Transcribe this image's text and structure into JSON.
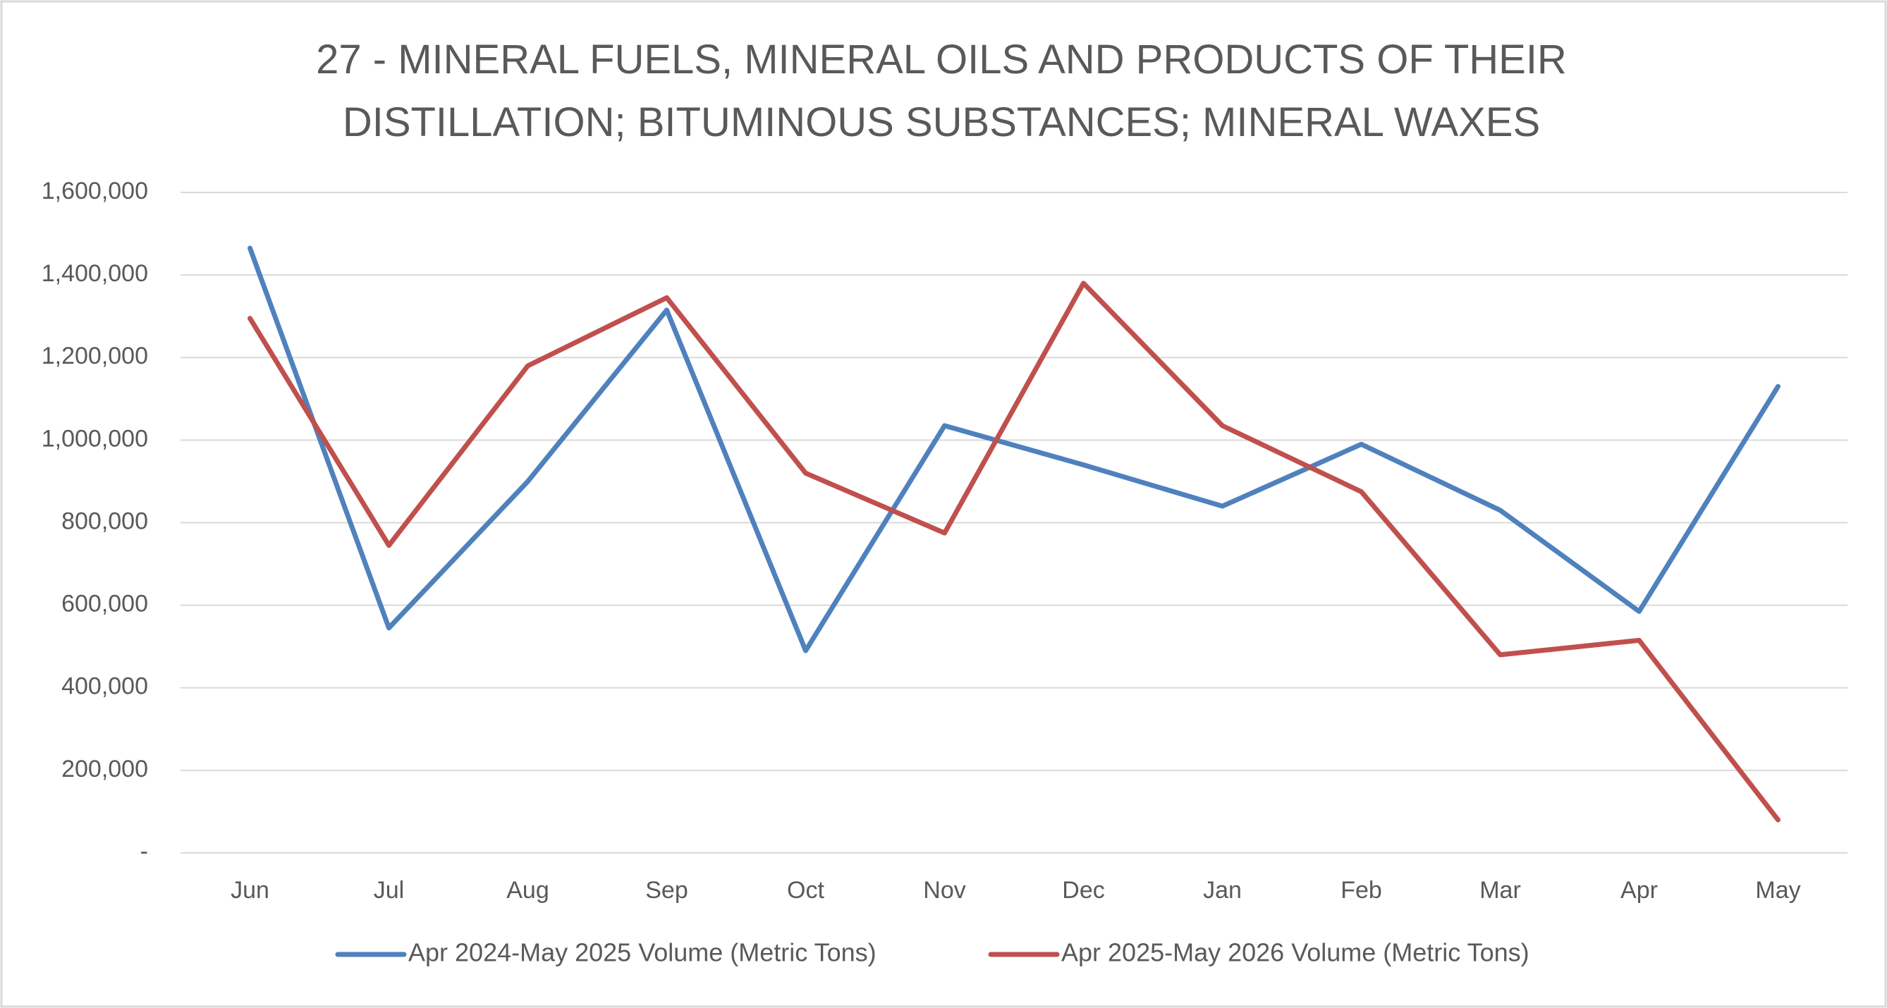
{
  "chart_data": {
    "type": "line",
    "title": "27 - MINERAL FUELS, MINERAL OILS AND PRODUCTS OF THEIR DISTILLATION; BITUMINOUS SUBSTANCES; MINERAL WAXES",
    "categories": [
      "Jun",
      "Jul",
      "Aug",
      "Sep",
      "Oct",
      "Nov",
      "Dec",
      "Jan",
      "Feb",
      "Mar",
      "Apr",
      "May"
    ],
    "series": [
      {
        "name": "Apr 2024-May 2025 Volume (Metric Tons)",
        "color": "#4f81bd",
        "values": [
          1465000,
          545000,
          900000,
          1315000,
          490000,
          1035000,
          940000,
          840000,
          990000,
          830000,
          585000,
          1130000
        ]
      },
      {
        "name": "Apr 2025-May 2026 Volume (Metric Tons)",
        "color": "#c0504d",
        "values": [
          1295000,
          745000,
          1180000,
          1345000,
          920000,
          775000,
          1380000,
          1035000,
          875000,
          480000,
          515000,
          80000
        ]
      }
    ],
    "ylim": [
      0,
      1600000
    ],
    "yticks": [
      {
        "value": 0,
        "label": "-"
      },
      {
        "value": 200000,
        "label": "200,000"
      },
      {
        "value": 400000,
        "label": "400,000"
      },
      {
        "value": 600000,
        "label": "600,000"
      },
      {
        "value": 800000,
        "label": "800,000"
      },
      {
        "value": 1000000,
        "label": "1,000,000"
      },
      {
        "value": 1200000,
        "label": "1,200,000"
      },
      {
        "value": 1400000,
        "label": "1,400,000"
      },
      {
        "value": 1600000,
        "label": "1,600,000"
      }
    ],
    "grid": true,
    "legend": "bottom"
  }
}
